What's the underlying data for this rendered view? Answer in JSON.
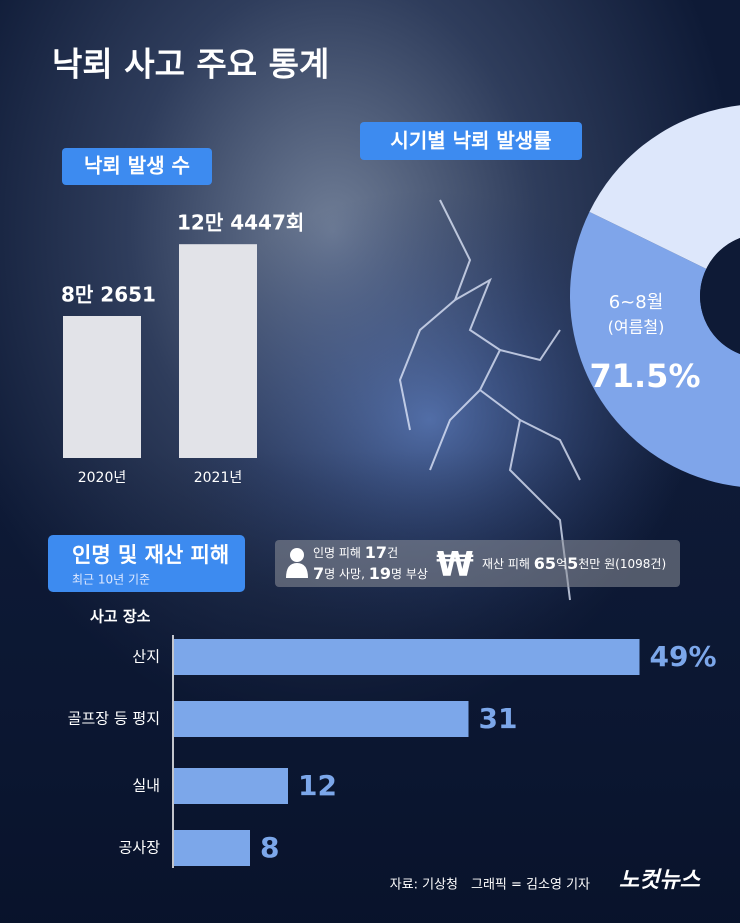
{
  "title": "낙뢰 사고 주요 통계",
  "chart_data": [
    {
      "type": "bar",
      "title": "낙뢰 발생 수",
      "categories": [
        "2020년",
        "2021년"
      ],
      "values": [
        82651,
        124447
      ],
      "value_labels": [
        "8만 2651",
        "12만 4447회"
      ],
      "color": "#e2e3e8"
    },
    {
      "type": "pie",
      "title": "시기별 낙뢰 발생률",
      "categories": [
        "6~8월",
        null
      ],
      "category_notes": [
        "(여름철)",
        null
      ],
      "values": [
        71.5,
        28.5
      ],
      "value_labels": [
        "71.5%",
        null
      ],
      "colors": [
        "#7fa5ea",
        "#dde7fb"
      ]
    },
    {
      "type": "hbar",
      "title": "사고 장소",
      "categories": [
        "산지",
        "골프장 등 평지",
        "실내",
        "공사장"
      ],
      "values": [
        49,
        31,
        12,
        8
      ],
      "value_labels": [
        "49%",
        "31",
        "12",
        "8"
      ],
      "color": "#7ca7ea"
    }
  ],
  "damage": {
    "title": "인명 및 재산 피해",
    "subtitle": "최근 10년 기준",
    "casualties": [
      [
        {
          "text": "인명 피해 ",
          "bold": false
        },
        {
          "text": "17",
          "bold": true
        },
        {
          "text": "건",
          "bold": false
        }
      ],
      [
        {
          "text": "7",
          "bold": true
        },
        {
          "text": "명 사망, ",
          "bold": false
        },
        {
          "text": "19",
          "bold": true
        },
        {
          "text": "명 부상",
          "bold": false
        }
      ]
    ],
    "property": [
      {
        "text": "재산 피해 ",
        "bold": false
      },
      {
        "text": "65",
        "bold": true
      },
      {
        "text": "억",
        "bold": false
      },
      {
        "text": "5",
        "bold": true
      },
      {
        "text": "천만 원(1098건)",
        "bold": false
      }
    ]
  },
  "footer": {
    "source": "자료: 기상청",
    "credit": "그래픽 = 김소영 기자",
    "logo": "노컷뉴스"
  }
}
